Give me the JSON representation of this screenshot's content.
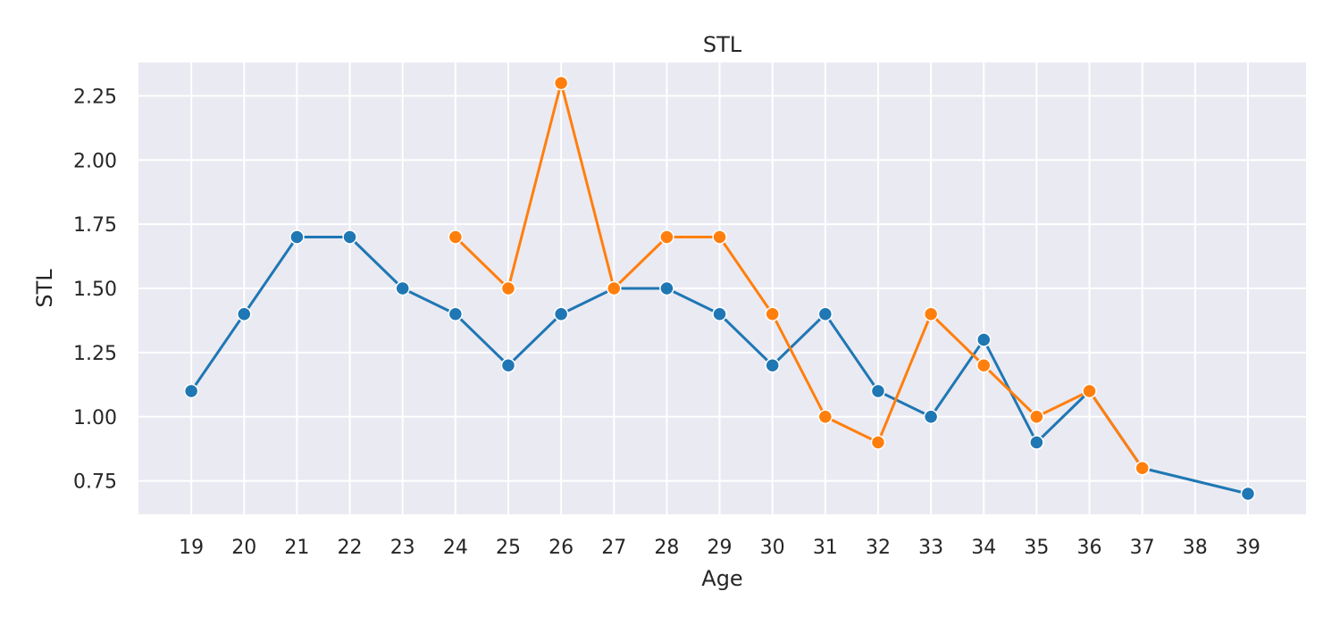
{
  "chart_data": {
    "type": "line",
    "title": "STL",
    "xlabel": "Age",
    "ylabel": "STL",
    "x_ticks": [
      19,
      20,
      21,
      22,
      23,
      24,
      25,
      26,
      27,
      28,
      29,
      30,
      31,
      32,
      33,
      34,
      35,
      36,
      37,
      38,
      39
    ],
    "y_ticks": [
      "0.75",
      "1.00",
      "1.25",
      "1.50",
      "1.75",
      "2.00",
      "2.25"
    ],
    "xlim": [
      18,
      40.1
    ],
    "ylim": [
      0.62,
      2.38
    ],
    "grid": true,
    "background_color": "#eaeaf2",
    "series": [
      {
        "color": "#1f77b4",
        "x": [
          19,
          20,
          21,
          22,
          23,
          24,
          25,
          26,
          27,
          28,
          29,
          30,
          31,
          32,
          33,
          34,
          35,
          36,
          37,
          39
        ],
        "y": [
          1.1,
          1.4,
          1.7,
          1.7,
          1.5,
          1.4,
          1.2,
          1.4,
          1.5,
          1.5,
          1.4,
          1.2,
          1.4,
          1.1,
          1.0,
          1.3,
          0.9,
          1.1,
          0.8,
          0.7
        ]
      },
      {
        "color": "#ff7f0e",
        "x": [
          24,
          25,
          26,
          27,
          28,
          29,
          30,
          31,
          32,
          33,
          34,
          35,
          36,
          37
        ],
        "y": [
          1.7,
          1.5,
          2.3,
          1.5,
          1.7,
          1.7,
          1.4,
          1.0,
          0.9,
          1.4,
          1.2,
          1.0,
          1.1,
          0.8
        ]
      }
    ]
  }
}
